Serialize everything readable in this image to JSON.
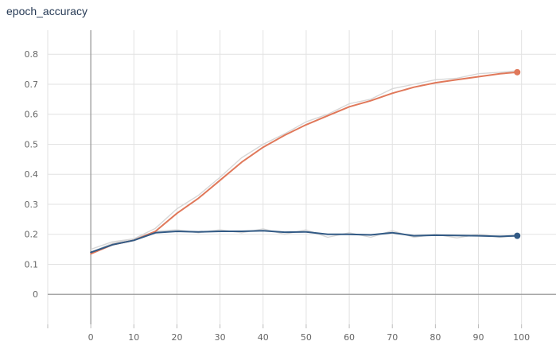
{
  "card": {
    "title": "epoch_accuracy"
  },
  "chart_data": {
    "type": "line",
    "title": "epoch_accuracy",
    "xlabel": "",
    "ylabel": "",
    "xlim": [
      -10,
      108
    ],
    "ylim": [
      -0.1,
      0.88
    ],
    "x_ticks": [
      0,
      10,
      20,
      30,
      40,
      50,
      60,
      70,
      80,
      90,
      100
    ],
    "y_ticks": [
      0,
      0.1,
      0.2,
      0.3,
      0.4,
      0.5,
      0.6,
      0.7,
      0.8
    ],
    "x_tick_labels": [
      "0",
      "10",
      "20",
      "30",
      "40",
      "50",
      "60",
      "70",
      "80",
      "90",
      "100"
    ],
    "y_tick_labels": [
      "0",
      "0.1",
      "0.2",
      "0.3",
      "0.4",
      "0.5",
      "0.6",
      "0.7",
      "0.8"
    ],
    "grid": true,
    "raw_color": "#d7d7d7",
    "series": [
      {
        "color": "#e0785a",
        "x": [
          0,
          5,
          10,
          15,
          20,
          25,
          30,
          35,
          40,
          45,
          50,
          55,
          60,
          65,
          70,
          75,
          80,
          85,
          90,
          95,
          99
        ],
        "values": [
          0.135,
          0.165,
          0.18,
          0.21,
          0.27,
          0.32,
          0.38,
          0.44,
          0.49,
          0.53,
          0.565,
          0.595,
          0.625,
          0.645,
          0.67,
          0.69,
          0.705,
          0.715,
          0.725,
          0.735,
          0.74
        ],
        "raw_values": [
          0.14,
          0.17,
          0.185,
          0.22,
          0.285,
          0.33,
          0.39,
          0.455,
          0.5,
          0.535,
          0.575,
          0.6,
          0.635,
          0.65,
          0.685,
          0.7,
          0.715,
          0.72,
          0.735,
          0.74,
          0.745
        ]
      },
      {
        "color": "#325a85",
        "x": [
          0,
          5,
          10,
          15,
          20,
          25,
          30,
          35,
          40,
          45,
          50,
          55,
          60,
          65,
          70,
          75,
          80,
          85,
          90,
          95,
          99
        ],
        "values": [
          0.14,
          0.165,
          0.18,
          0.205,
          0.21,
          0.208,
          0.21,
          0.21,
          0.212,
          0.207,
          0.208,
          0.2,
          0.2,
          0.198,
          0.205,
          0.195,
          0.197,
          0.196,
          0.195,
          0.193,
          0.195
        ],
        "raw_values": [
          0.15,
          0.175,
          0.185,
          0.21,
          0.215,
          0.205,
          0.215,
          0.205,
          0.218,
          0.2,
          0.215,
          0.19,
          0.205,
          0.19,
          0.212,
          0.19,
          0.2,
          0.188,
          0.2,
          0.19,
          0.195
        ]
      }
    ]
  }
}
